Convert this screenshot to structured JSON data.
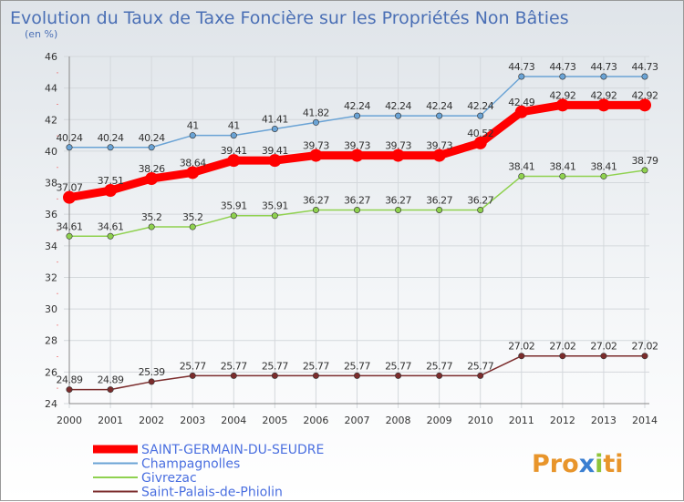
{
  "chart_data": {
    "type": "line",
    "title": "Evolution du Taux de Taxe Foncière sur les Propriétés Non Bâties",
    "unit_label": "(en %)",
    "ylim": [
      24,
      46
    ],
    "yticks": [
      "24",
      "26",
      "28",
      "30",
      "32",
      "34",
      "36",
      "38",
      "40",
      "42",
      "44",
      "46"
    ],
    "x": [
      "2000",
      "2001",
      "2002",
      "2003",
      "2004",
      "2005",
      "2006",
      "2007",
      "2008",
      "2009",
      "2010",
      "2011",
      "2012",
      "2013",
      "2014"
    ],
    "grid": true,
    "legend_position": "bottom-left",
    "series": [
      {
        "name": "SAINT-GERMAIN-DU-SEUDRE",
        "color": "#ff0000",
        "values": [
          37.07,
          37.51,
          38.26,
          38.64,
          39.41,
          39.41,
          39.73,
          39.73,
          39.73,
          39.73,
          40.52,
          42.49,
          42.92,
          42.92,
          42.92
        ],
        "labels": [
          "37.07",
          "37.51",
          "38.26",
          "38.64",
          "39.41",
          "39.41",
          "39.73",
          "39.73",
          "39.73",
          "39.73",
          "40.52",
          "42.49",
          "42.92",
          "42.92",
          "42.92"
        ]
      },
      {
        "name": "Champagnolles",
        "color": "#6aa3d5",
        "values": [
          40.24,
          40.24,
          40.24,
          41,
          41,
          41.41,
          41.82,
          42.24,
          42.24,
          42.24,
          42.24,
          44.73,
          44.73,
          44.73,
          44.73
        ],
        "labels": [
          "40.24",
          "40.24",
          "40.24",
          "41",
          "41",
          "41.41",
          "41.82",
          "42.24",
          "42.24",
          "42.24",
          "42.24",
          "44.73",
          "44.73",
          "44.73",
          "44.73"
        ]
      },
      {
        "name": "Givrezac",
        "color": "#8fd14f",
        "values": [
          34.61,
          34.61,
          35.2,
          35.2,
          35.91,
          35.91,
          36.27,
          36.27,
          36.27,
          36.27,
          36.27,
          38.41,
          38.41,
          38.41,
          38.79
        ],
        "labels": [
          "34.61",
          "34.61",
          "35.2",
          "35.2",
          "35.91",
          "35.91",
          "36.27",
          "36.27",
          "36.27",
          "36.27",
          "36.27",
          "38.41",
          "38.41",
          "38.41",
          "38.79"
        ]
      },
      {
        "name": "Saint-Palais-de-Phiolin",
        "color": "#7b2c2c",
        "values": [
          24.89,
          24.89,
          25.39,
          25.77,
          25.77,
          25.77,
          25.77,
          25.77,
          25.77,
          25.77,
          25.77,
          27.02,
          27.02,
          27.02,
          27.02
        ],
        "labels": [
          "24.89",
          "24.89",
          "25.39",
          "25.77",
          "25.77",
          "25.77",
          "25.77",
          "25.77",
          "25.77",
          "25.77",
          "25.77",
          "27.02",
          "27.02",
          "27.02",
          "27.02"
        ]
      }
    ]
  },
  "logo": {
    "text": "Proxiti"
  }
}
